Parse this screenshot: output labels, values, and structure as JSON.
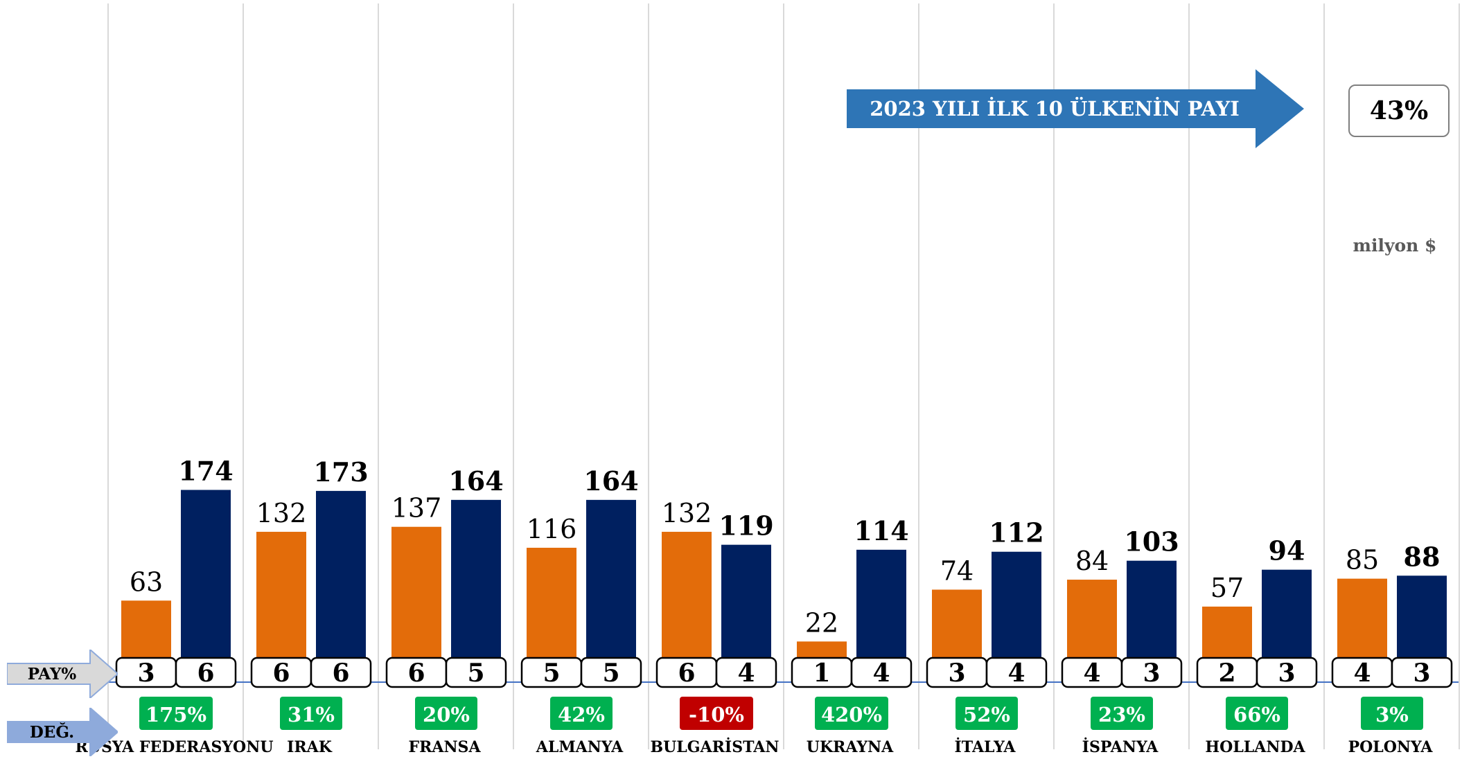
{
  "chart_data": {
    "type": "bar",
    "categories": [
      "RUSYA FEDERASYONU",
      "IRAK",
      "FRANSA",
      "ALMANYA",
      "BULGARİSTAN",
      "UKRAYNA",
      "İTALYA",
      "İSPANYA",
      "HOLLANDA",
      "POLONYA"
    ],
    "series": [
      {
        "values": [
          63,
          132,
          137,
          116,
          132,
          22,
          74,
          84,
          57,
          85
        ],
        "color": "#e36c0a"
      },
      {
        "values": [
          174,
          173,
          164,
          164,
          119,
          114,
          112,
          103,
          94,
          88
        ],
        "color": "#002060"
      }
    ],
    "pay": [
      [
        "3",
        "6"
      ],
      [
        "6",
        "6"
      ],
      [
        "6",
        "5"
      ],
      [
        "5",
        "5"
      ],
      [
        "6",
        "4"
      ],
      [
        "1",
        "4"
      ],
      [
        "3",
        "4"
      ],
      [
        "4",
        "3"
      ],
      [
        "2",
        "3"
      ],
      [
        "4",
        "3"
      ]
    ],
    "change": [
      "175%",
      "31%",
      "20%",
      "42%",
      "-10%",
      "420%",
      "52%",
      "23%",
      "66%",
      "3%"
    ],
    "change_colors": {
      "positive": "#00b050",
      "negative": "#c00000"
    },
    "ylim": [
      0,
      200
    ],
    "grid": "vertical separators"
  },
  "banner": {
    "text": "2023 YILI İLK 10 ÜLKENİN PAYI",
    "color": "#2e75b6"
  },
  "share": {
    "value": "43%"
  },
  "unit": "milyon $",
  "row_labels": {
    "pay": "PAY%",
    "change": "DEĞ."
  }
}
